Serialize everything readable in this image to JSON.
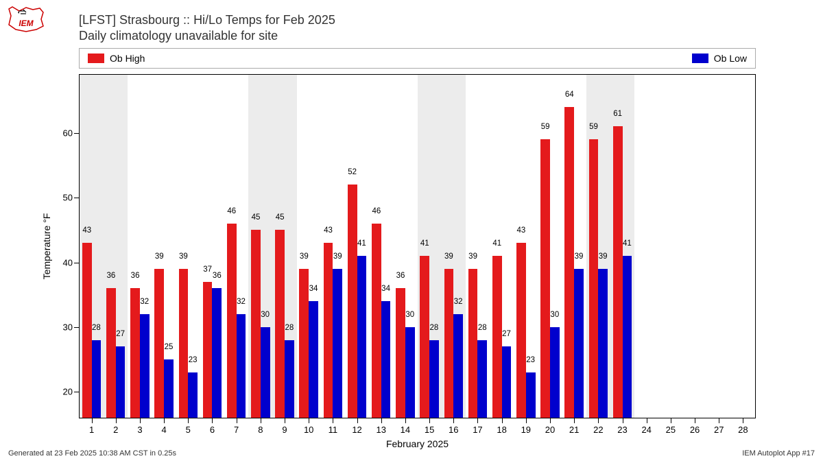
{
  "logo_text": "IEM",
  "title": {
    "line1": "[LFST] Strasbourg :: Hi/Lo Temps for Feb 2025",
    "line2": "Daily climatology unavailable for site"
  },
  "legend": {
    "items": [
      {
        "label": "Ob High",
        "color": "#e41a1c"
      },
      {
        "label": "Ob Low",
        "color": "#0000cd"
      }
    ]
  },
  "chart": {
    "type": "bar",
    "y_label": "Temperature °F",
    "x_label": "February 2025",
    "ylim": [
      16,
      69
    ],
    "y_ticks": [
      20,
      30,
      40,
      50,
      60
    ],
    "x_days": [
      1,
      2,
      3,
      4,
      5,
      6,
      7,
      8,
      9,
      10,
      11,
      12,
      13,
      14,
      15,
      16,
      17,
      18,
      19,
      20,
      21,
      22,
      23,
      24,
      25,
      26,
      27,
      28
    ],
    "weekend_bands": [
      [
        1,
        2
      ],
      [
        8,
        9
      ],
      [
        15,
        16
      ],
      [
        22,
        23
      ]
    ],
    "bar_group_width": 0.78,
    "colors": {
      "high": "#e41a1c",
      "low": "#0000cd",
      "weekend_bg": "#ececec"
    },
    "data": [
      {
        "day": 1,
        "high": 43,
        "low": 28
      },
      {
        "day": 2,
        "high": 36,
        "low": 27
      },
      {
        "day": 3,
        "high": 36,
        "low": 32
      },
      {
        "day": 4,
        "high": 39,
        "low": 25
      },
      {
        "day": 5,
        "high": 39,
        "low": 23
      },
      {
        "day": 6,
        "high": 37,
        "low": 36
      },
      {
        "day": 7,
        "high": 46,
        "low": 32
      },
      {
        "day": 8,
        "high": 45,
        "low": 30
      },
      {
        "day": 9,
        "high": 45,
        "low": 28
      },
      {
        "day": 10,
        "high": 39,
        "low": 34
      },
      {
        "day": 11,
        "high": 43,
        "low": 39
      },
      {
        "day": 12,
        "high": 52,
        "low": 41
      },
      {
        "day": 13,
        "high": 46,
        "low": 34
      },
      {
        "day": 14,
        "high": 36,
        "low": 30
      },
      {
        "day": 15,
        "high": 41,
        "low": 28
      },
      {
        "day": 16,
        "high": 39,
        "low": 32
      },
      {
        "day": 17,
        "high": 39,
        "low": 28
      },
      {
        "day": 18,
        "high": 41,
        "low": 27
      },
      {
        "day": 19,
        "high": 43,
        "low": 23
      },
      {
        "day": 20,
        "high": 59,
        "low": 30
      },
      {
        "day": 21,
        "high": 64,
        "low": 39
      },
      {
        "day": 22,
        "high": 59,
        "low": 39
      },
      {
        "day": 23,
        "high": 61,
        "low": 41
      }
    ]
  },
  "footer": {
    "left": "Generated at 23 Feb 2025 10:38 AM CST in 0.25s",
    "right": "IEM Autoplot App #17"
  }
}
